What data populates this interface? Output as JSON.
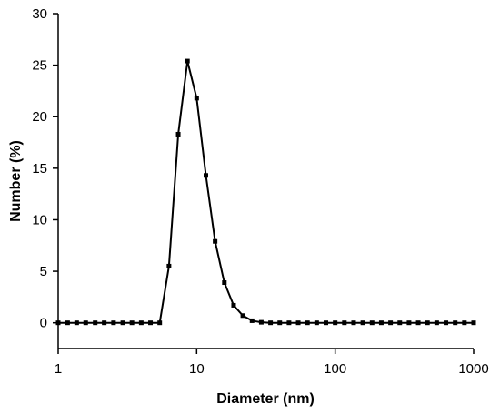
{
  "chart_data": {
    "type": "line",
    "x_label": "Diameter (nm)",
    "y_label": "Number (%)",
    "x": [
      1,
      1.17,
      1.36,
      1.58,
      1.85,
      2.15,
      2.51,
      2.93,
      3.41,
      3.98,
      4.64,
      5.41,
      6.31,
      7.36,
      8.58,
      10,
      11.66,
      13.59,
      15.85,
      18.48,
      21.54,
      25.12,
      29.29,
      34.15,
      39.81,
      46.42,
      54.12,
      63.1,
      73.56,
      85.77,
      100,
      116.59,
      135.94,
      158.49,
      184.78,
      215.44,
      251.19,
      292.86,
      341.45,
      398.11,
      464.16,
      541.17,
      630.96,
      735.64,
      857.7,
      1000
    ],
    "series": [
      {
        "color": "#000000",
        "values": [
          0,
          0,
          0,
          0,
          0,
          0,
          0,
          0,
          0,
          0,
          0,
          0,
          5.5,
          18.3,
          25.4,
          21.8,
          14.3,
          7.9,
          3.9,
          1.7,
          0.7,
          0.2,
          0.05,
          0,
          0,
          0,
          0,
          0,
          0,
          0,
          0,
          0,
          0,
          0,
          0,
          0,
          0,
          0,
          0,
          0,
          0,
          0,
          0,
          0,
          0,
          0
        ]
      }
    ],
    "x_scale": "log",
    "xlim": [
      1,
      1000
    ],
    "xticks": [
      1,
      10,
      100,
      1000
    ],
    "ylim": [
      -2.5,
      30
    ],
    "yticks": [
      0,
      5,
      10,
      15,
      20,
      25,
      30
    ]
  }
}
